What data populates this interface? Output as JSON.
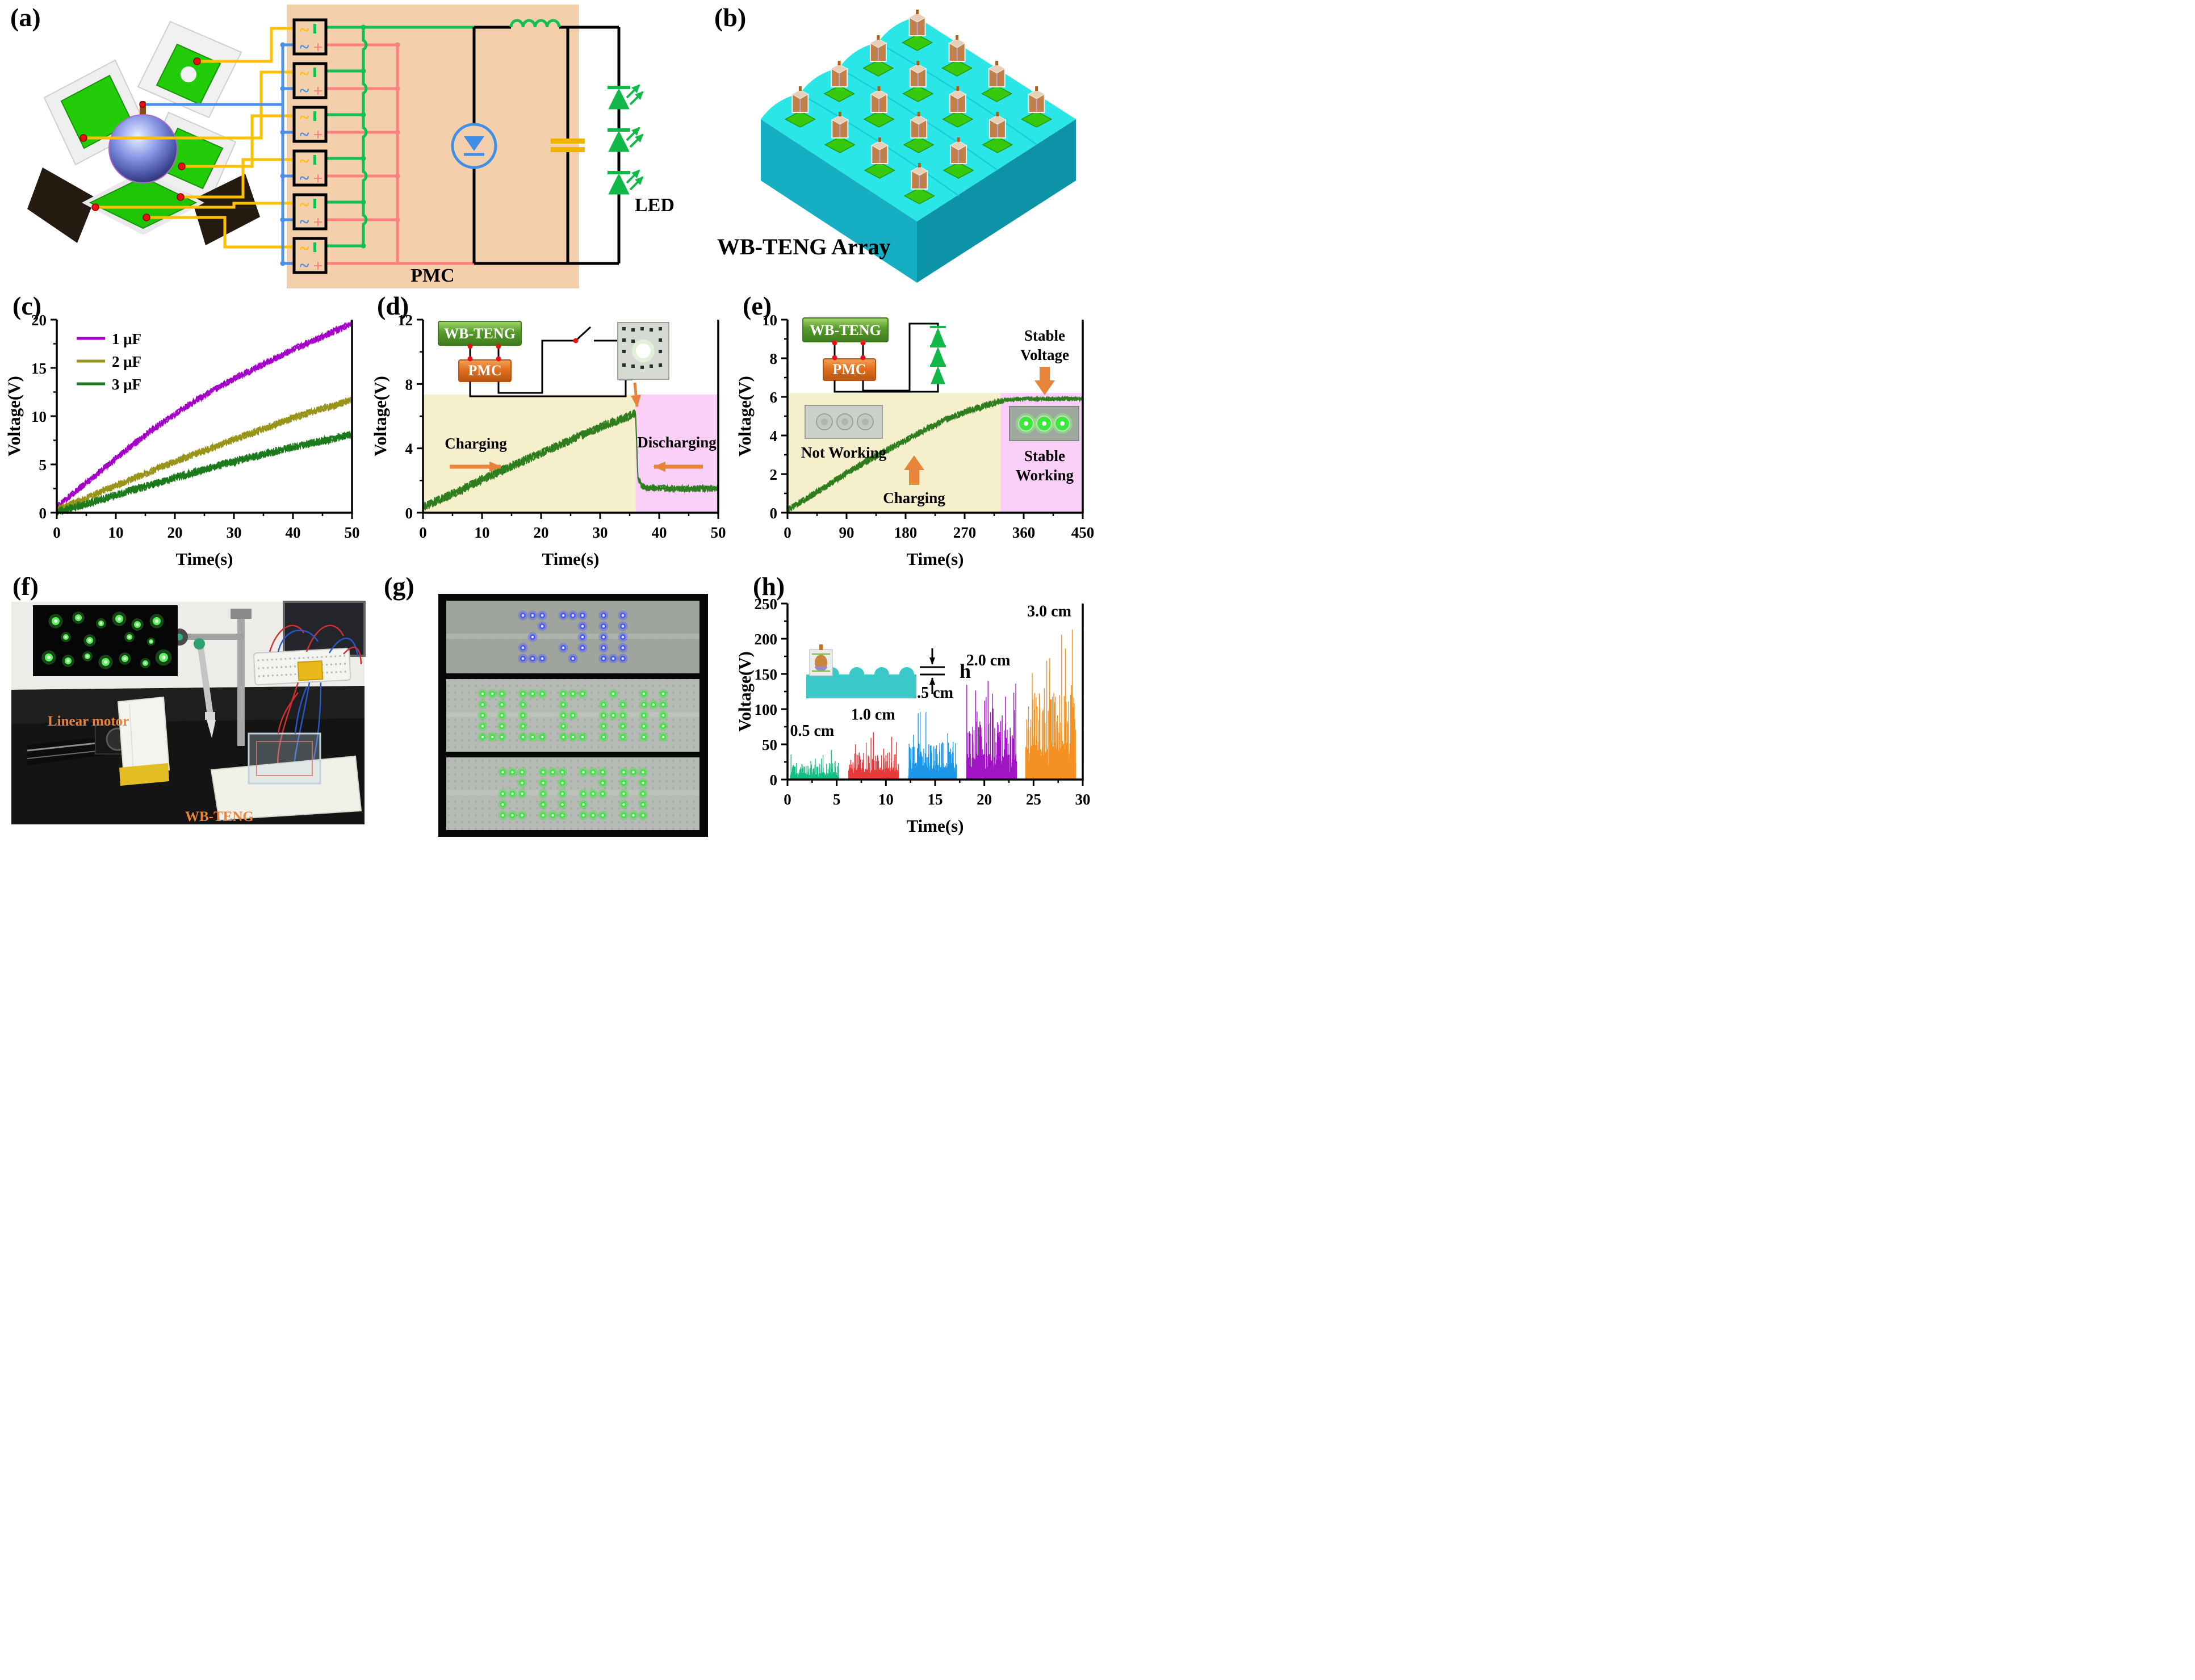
{
  "figure": {
    "panel_labels": {
      "a": "(a)",
      "b": "(b)",
      "c": "(c)",
      "d": "(d)",
      "e": "(e)",
      "f": "(f)",
      "g": "(g)",
      "h": "(h)"
    },
    "panel_a": {
      "pmc_label": "PMC",
      "led_label": "LED"
    },
    "panel_b": {
      "title": "WB-TENG Array"
    },
    "panel_d": {
      "inset_teng": "WB-TENG",
      "inset_pmc": "PMC",
      "charging": "Charging",
      "discharging": "Discharging"
    },
    "panel_e": {
      "inset_teng": "WB-TENG",
      "inset_pmc": "PMC",
      "stable_line1": "Stable",
      "stable_line2": "Voltage",
      "not_working": "Not Working",
      "charging": "Charging",
      "working_line1": "Stable",
      "working_line2": "Working"
    },
    "panel_f": {
      "motor_label": "Linear motor",
      "teng_label": "WB-TENG"
    },
    "panel_g": {
      "words": [
        {
          "text": "ZJU",
          "color": "#4858FF"
        },
        {
          "text": "OCEAN",
          "color": "#38E63C"
        },
        {
          "text": "2020",
          "color": "#38E63C"
        }
      ]
    },
    "panel_h": {
      "height_label": "h"
    }
  },
  "chart_data": [
    {
      "id": "c",
      "type": "line",
      "title": "",
      "xlabel": "Time(s)",
      "ylabel": "Voltage(V)",
      "xlim": [
        0,
        50
      ],
      "ylim": [
        0,
        20
      ],
      "xticks": [
        0,
        10,
        20,
        30,
        40,
        50
      ],
      "yticks": [
        0,
        5,
        10,
        15,
        20
      ],
      "xminor": [
        5,
        15,
        25,
        35,
        45
      ],
      "yminor": [
        2.5,
        7.5,
        12.5,
        17.5
      ],
      "grid": false,
      "legend_position": "top-left",
      "legend": [
        {
          "label": "1 μF",
          "color": "#A400C8"
        },
        {
          "label": "2 μF",
          "color": "#98941A"
        },
        {
          "label": "3 μF",
          "color": "#1B7A1B"
        }
      ],
      "series": [
        {
          "name": "1 uF",
          "color": "#A400C8",
          "noise": 0.35,
          "x": [
            0,
            2,
            5,
            8,
            12,
            16,
            20,
            24,
            28,
            32,
            36,
            40,
            44,
            47,
            50
          ],
          "y": [
            0.6,
            1.6,
            3.1,
            4.6,
            6.6,
            8.5,
            10.2,
            11.8,
            13.2,
            14.5,
            15.7,
            16.9,
            18.0,
            18.8,
            19.6
          ]
        },
        {
          "name": "2 uF",
          "color": "#98941A",
          "noise": 0.38,
          "x": [
            0,
            2,
            5,
            8,
            12,
            16,
            20,
            24,
            28,
            32,
            36,
            40,
            44,
            47,
            50
          ],
          "y": [
            0.3,
            0.8,
            1.5,
            2.3,
            3.3,
            4.3,
            5.3,
            6.2,
            7.1,
            8.0,
            8.9,
            9.8,
            10.6,
            11.1,
            11.7
          ]
        },
        {
          "name": "3 uF",
          "color": "#1B7A1B",
          "noise": 0.42,
          "x": [
            0,
            2,
            5,
            8,
            12,
            16,
            20,
            24,
            28,
            32,
            36,
            40,
            44,
            47,
            50
          ],
          "y": [
            0.1,
            0.4,
            0.9,
            1.5,
            2.2,
            2.9,
            3.6,
            4.3,
            5.0,
            5.6,
            6.2,
            6.8,
            7.3,
            7.7,
            8.1
          ]
        }
      ]
    },
    {
      "id": "d",
      "type": "line",
      "xlabel": "Time(s)",
      "ylabel": "Voltage(V)",
      "xlim": [
        0,
        50
      ],
      "ylim": [
        0,
        12
      ],
      "xticks": [
        0,
        10,
        20,
        30,
        40,
        50
      ],
      "yticks": [
        0,
        4,
        8,
        12
      ],
      "xminor": [
        5,
        15,
        25,
        35,
        45
      ],
      "yminor": [
        2,
        6,
        10
      ],
      "regions": [
        {
          "x0": 0,
          "x1": 36,
          "ytop": 7.35,
          "color": "#F6EFCB",
          "label": "Charging"
        },
        {
          "x0": 36,
          "x1": 50,
          "ytop": 7.35,
          "color": "#FAD0F8",
          "label": "Discharging"
        }
      ],
      "series": [
        {
          "name": "capacitor voltage",
          "color": "#2E7D1E",
          "noise": 0.28,
          "noise2": 0.2,
          "noise_split": 36.3,
          "x": [
            0,
            4,
            8,
            12,
            16,
            20,
            24,
            28,
            32,
            35.8,
            36.0,
            36.4,
            37,
            38,
            42,
            46,
            50
          ],
          "y": [
            0.35,
            1.0,
            1.7,
            2.4,
            3.05,
            3.7,
            4.35,
            5.0,
            5.6,
            6.15,
            6.2,
            2.2,
            1.7,
            1.55,
            1.5,
            1.5,
            1.5
          ]
        }
      ]
    },
    {
      "id": "e",
      "type": "line",
      "xlabel": "Time(s)",
      "ylabel": "Voltage(V)",
      "xlim": [
        0,
        450
      ],
      "ylim": [
        0,
        10
      ],
      "xticks": [
        0,
        90,
        180,
        270,
        360,
        450
      ],
      "yticks": [
        0,
        2,
        4,
        6,
        8,
        10
      ],
      "xminor": [
        45,
        135,
        225,
        315,
        405
      ],
      "yminor": [
        1,
        3,
        5,
        7,
        9
      ],
      "regions": [
        {
          "x0": 0,
          "x1": 325,
          "ytop": 6.2,
          "color": "#F6EFCB",
          "label": "Not Working / Charging"
        },
        {
          "x0": 325,
          "x1": 450,
          "ytop": 6.2,
          "color": "#FAD0F8",
          "label": "Stable Working"
        }
      ],
      "series": [
        {
          "name": "capacitor voltage",
          "color": "#2E7D1E",
          "noise": 0.17,
          "noise2": 0.1,
          "noise_split": 330,
          "x": [
            0,
            30,
            60,
            90,
            120,
            150,
            180,
            210,
            240,
            270,
            300,
            322,
            330,
            360,
            400,
            450
          ],
          "y": [
            0.15,
            0.75,
            1.4,
            2.05,
            2.65,
            3.2,
            3.75,
            4.3,
            4.8,
            5.2,
            5.55,
            5.75,
            5.85,
            5.9,
            5.9,
            5.9
          ]
        }
      ]
    },
    {
      "id": "h",
      "type": "spiky-bursts",
      "xlabel": "Time(s)",
      "ylabel": "Voltage(V)",
      "xlim": [
        0,
        30
      ],
      "ylim": [
        0,
        250
      ],
      "xticks": [
        0,
        5,
        10,
        15,
        20,
        25,
        30
      ],
      "yticks": [
        0,
        50,
        100,
        150,
        200,
        250
      ],
      "xminor": [
        2.5,
        7.5,
        12.5,
        17.5,
        22.5,
        27.5
      ],
      "yminor": [
        25,
        75,
        125,
        175,
        225
      ],
      "bursts": [
        {
          "label": "0.5 cm",
          "color": "#14BE82",
          "t0": 0.3,
          "t1": 5.2,
          "vmax": 42,
          "vtyp": 16,
          "label_x": 2.5,
          "label_y": 62
        },
        {
          "label": "1.0 cm",
          "color": "#E43A3C",
          "t0": 6.2,
          "t1": 11.3,
          "vmax": 67,
          "vtyp": 26,
          "label_x": 8.7,
          "label_y": 85
        },
        {
          "label": "1.5 cm",
          "color": "#1E96E8",
          "t0": 12.3,
          "t1": 17.2,
          "vmax": 96,
          "vtyp": 36,
          "label_x": 14.6,
          "label_y": 116
        },
        {
          "label": "2.0 cm",
          "color": "#A014C4",
          "t0": 18.2,
          "t1": 23.3,
          "vmax": 140,
          "vtyp": 56,
          "label_x": 20.4,
          "label_y": 162
        },
        {
          "label": "3.0 cm",
          "color": "#F59122",
          "t0": 24.2,
          "t1": 29.3,
          "vmax": 213,
          "vtyp": 82,
          "label_x": 26.6,
          "label_y": 232
        }
      ]
    }
  ]
}
